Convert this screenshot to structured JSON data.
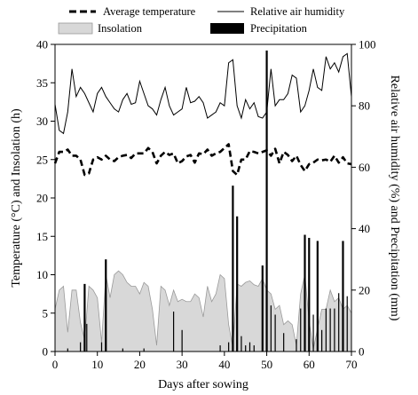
{
  "chart_data": {
    "type": "line",
    "xlabel": "Days after sowing",
    "ylabel_left": "Temperature (°C) and Insolation (h)",
    "ylabel_right": "Relative air humidity (%) and Precipitation (mm)",
    "xlim": [
      0,
      70
    ],
    "ylim_left": [
      0,
      40
    ],
    "ylim_right": [
      0,
      100
    ],
    "x_ticks": [
      "0",
      "10",
      "20",
      "30",
      "40",
      "50",
      "60",
      "70"
    ],
    "y_left_ticks": [
      "0",
      "5",
      "10",
      "15",
      "20",
      "25",
      "30",
      "35",
      "40"
    ],
    "y_right_ticks": [
      "0",
      "20",
      "40",
      "60",
      "80",
      "100"
    ],
    "grid": false,
    "legend_position": "top",
    "series": [
      {
        "name": "Average temperature",
        "type": "line",
        "axis": "left",
        "style": "dashed",
        "x": [
          0,
          1,
          2,
          3,
          4,
          5,
          6,
          7,
          8,
          9,
          10,
          11,
          12,
          13,
          14,
          15,
          16,
          17,
          18,
          19,
          20,
          21,
          22,
          23,
          24,
          25,
          26,
          27,
          28,
          29,
          30,
          31,
          32,
          33,
          34,
          35,
          36,
          37,
          38,
          39,
          40,
          41,
          42,
          43,
          44,
          45,
          46,
          47,
          48,
          49,
          50,
          51,
          52,
          53,
          54,
          55,
          56,
          57,
          58,
          59,
          60,
          61,
          62,
          63,
          64,
          65,
          66,
          67,
          68,
          69,
          70
        ],
        "values": [
          24.5,
          26,
          26,
          26.3,
          25.5,
          25.5,
          25,
          23,
          23.2,
          25,
          25.3,
          25,
          25.5,
          25,
          24.8,
          25.3,
          25.5,
          25.6,
          25.2,
          25.8,
          25.8,
          25.8,
          26.5,
          26,
          24.5,
          25.5,
          26,
          25.6,
          25.8,
          24.5,
          24.8,
          25.4,
          25.6,
          24.6,
          25.8,
          25.7,
          26.3,
          25.5,
          25.8,
          26,
          26.5,
          27,
          23.5,
          23,
          25,
          25,
          26.1,
          26,
          25.8,
          26,
          26.2,
          25.5,
          26.4,
          24.5,
          26,
          25.6,
          24.8,
          25.5,
          24.3,
          23.5,
          24.4,
          24.6,
          25,
          24.9,
          25,
          24.7,
          25.5,
          24.6,
          25.3,
          24.5,
          24.4
        ]
      },
      {
        "name": "Relative air humidity",
        "type": "line",
        "axis": "right",
        "x": [
          0,
          1,
          2,
          3,
          4,
          5,
          6,
          7,
          8,
          9,
          10,
          11,
          12,
          13,
          14,
          15,
          16,
          17,
          18,
          19,
          20,
          21,
          22,
          23,
          24,
          25,
          26,
          27,
          28,
          29,
          30,
          31,
          32,
          33,
          34,
          35,
          36,
          37,
          38,
          39,
          40,
          41,
          42,
          43,
          44,
          45,
          46,
          47,
          48,
          49,
          50,
          51,
          52,
          53,
          54,
          55,
          56,
          57,
          58,
          59,
          60,
          61,
          62,
          63,
          64,
          65,
          66,
          67,
          68,
          69,
          70
        ],
        "values": [
          80.5,
          72,
          71,
          78,
          92,
          83,
          86,
          84,
          81,
          78,
          84,
          86,
          83,
          81,
          79,
          78,
          82,
          84,
          80.5,
          81,
          88,
          84,
          80,
          79,
          77,
          82,
          86,
          80,
          77,
          78,
          79,
          86,
          81,
          81.5,
          83,
          81,
          76,
          77,
          78,
          81,
          80,
          94,
          95,
          80,
          76,
          82,
          79,
          81,
          76.5,
          76,
          78,
          92,
          80,
          82,
          82,
          84,
          90,
          89,
          78,
          80,
          85,
          92,
          86,
          85,
          96,
          92,
          94,
          91,
          96,
          97,
          83
        ]
      },
      {
        "name": "Insolation",
        "type": "area",
        "axis": "left",
        "x": [
          0,
          1,
          2,
          3,
          4,
          5,
          6,
          7,
          8,
          9,
          10,
          11,
          12,
          13,
          14,
          15,
          16,
          17,
          18,
          19,
          20,
          21,
          22,
          23,
          24,
          25,
          26,
          27,
          28,
          29,
          30,
          31,
          32,
          33,
          34,
          35,
          36,
          37,
          38,
          39,
          40,
          41,
          42,
          43,
          44,
          45,
          46,
          47,
          48,
          49,
          50,
          51,
          52,
          53,
          54,
          55,
          56,
          57,
          58,
          59,
          60,
          61,
          62,
          63,
          64,
          65,
          66,
          67,
          68,
          69,
          70
        ],
        "values": [
          5.5,
          8,
          8.5,
          2.5,
          8,
          8,
          3.8,
          1.5,
          8.5,
          8,
          7,
          1.2,
          10,
          7,
          10,
          10.5,
          10,
          9,
          8.5,
          8.5,
          7.5,
          9,
          8.5,
          5.5,
          0.8,
          8.5,
          8,
          6,
          8,
          6.5,
          6.8,
          6.5,
          6.5,
          7.5,
          7,
          4.5,
          8.5,
          6.5,
          7.5,
          10,
          9.5,
          3.5,
          0.5,
          8.8,
          8.5,
          9,
          9.2,
          8.7,
          8.5,
          9.5,
          8,
          7.5,
          5.5,
          6,
          3.5,
          4,
          3.5,
          0.8,
          7.5,
          10,
          4,
          0.3,
          3,
          5.5,
          5.5,
          8,
          6.5,
          7,
          5.5,
          6,
          5
        ]
      },
      {
        "name": "Precipitation",
        "type": "bar",
        "axis": "right",
        "x": [
          3,
          6,
          7,
          7.5,
          11,
          12,
          16,
          21,
          28,
          30,
          39,
          41,
          42,
          43,
          44,
          45,
          46,
          47,
          49,
          50,
          51,
          52,
          54,
          57,
          58,
          59,
          60,
          61,
          62,
          63,
          64,
          65,
          66,
          67,
          68,
          69
        ],
        "values": [
          1,
          3,
          22,
          9,
          3,
          30,
          1,
          1,
          13,
          7,
          2,
          3,
          54,
          44,
          5,
          2,
          3,
          2,
          28,
          98,
          15,
          12,
          6,
          4,
          14,
          38,
          37,
          12,
          36,
          7,
          14,
          14,
          14,
          19,
          36,
          18
        ]
      }
    ]
  }
}
